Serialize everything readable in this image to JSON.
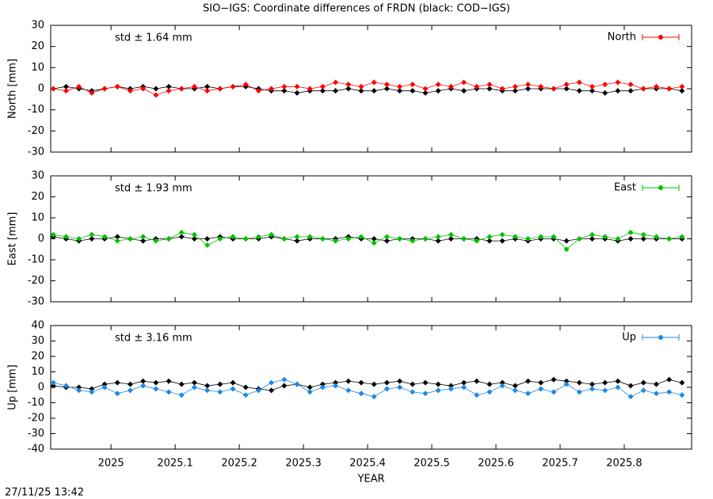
{
  "title": "SIO−IGS: Coordinate differences of FRDN (black: COD−IGS)",
  "timestamp": "27/11/25 13:42",
  "chart_data": [
    {
      "type": "line",
      "ylabel": "North [mm]",
      "annotation": "std ± 1.64 mm",
      "xlim": [
        2024.906,
        2025.905
      ],
      "xticks": [
        2025,
        2025.1,
        2025.2,
        2025.3,
        2025.4,
        2025.5,
        2025.6,
        2025.7,
        2025.8
      ],
      "xtick_labels": false,
      "ylim": [
        -30,
        30
      ],
      "yticks": [
        -30,
        -20,
        -10,
        0,
        10,
        20,
        30
      ],
      "legend": "top-right",
      "x": [
        2024.91,
        2024.93,
        2024.95,
        2024.97,
        2024.99,
        2025.01,
        2025.03,
        2025.05,
        2025.07,
        2025.09,
        2025.11,
        2025.13,
        2025.15,
        2025.17,
        2025.19,
        2025.21,
        2025.23,
        2025.25,
        2025.27,
        2025.29,
        2025.31,
        2025.33,
        2025.35,
        2025.37,
        2025.39,
        2025.41,
        2025.43,
        2025.45,
        2025.47,
        2025.49,
        2025.51,
        2025.53,
        2025.55,
        2025.57,
        2025.59,
        2025.61,
        2025.63,
        2025.65,
        2025.67,
        2025.69,
        2025.71,
        2025.73,
        2025.75,
        2025.77,
        2025.79,
        2025.81,
        2025.83,
        2025.85,
        2025.87,
        2025.89
      ],
      "series": [
        {
          "color": "#000000",
          "values": [
            0,
            1,
            0,
            -1,
            0,
            1,
            0,
            1,
            0,
            1,
            0,
            0,
            1,
            0,
            1,
            1,
            0,
            -1,
            -1,
            -2,
            -1,
            -1,
            -1,
            0,
            -1,
            -1,
            0,
            -1,
            -1,
            -2,
            -1,
            0,
            -1,
            0,
            0,
            -1,
            -1,
            0,
            0,
            0,
            0,
            -1,
            -1,
            -2,
            -1,
            -1,
            0,
            0,
            0,
            -1
          ]
        },
        {
          "name": "North",
          "color": "#ff0000",
          "values": [
            0,
            -1,
            1,
            -2,
            0,
            1,
            -1,
            0,
            -3,
            -1,
            0,
            1,
            -1,
            0,
            1,
            2,
            -1,
            0,
            1,
            1,
            0,
            1,
            3,
            2,
            1,
            3,
            2,
            1,
            2,
            0,
            2,
            1,
            3,
            1,
            2,
            0,
            1,
            2,
            1,
            0,
            2,
            3,
            1,
            2,
            3,
            2,
            0,
            1,
            0,
            1
          ]
        }
      ]
    },
    {
      "type": "line",
      "ylabel": "East [mm]",
      "annotation": "std ± 1.93 mm",
      "xlim": [
        2024.906,
        2025.905
      ],
      "xticks": [
        2025,
        2025.1,
        2025.2,
        2025.3,
        2025.4,
        2025.5,
        2025.6,
        2025.7,
        2025.8
      ],
      "xtick_labels": false,
      "ylim": [
        -30,
        30
      ],
      "yticks": [
        -30,
        -20,
        -10,
        0,
        10,
        20,
        30
      ],
      "legend": "top-right",
      "x": [
        2024.91,
        2024.93,
        2024.95,
        2024.97,
        2024.99,
        2025.01,
        2025.03,
        2025.05,
        2025.07,
        2025.09,
        2025.11,
        2025.13,
        2025.15,
        2025.17,
        2025.19,
        2025.21,
        2025.23,
        2025.25,
        2025.27,
        2025.29,
        2025.31,
        2025.33,
        2025.35,
        2025.37,
        2025.39,
        2025.41,
        2025.43,
        2025.45,
        2025.47,
        2025.49,
        2025.51,
        2025.53,
        2025.55,
        2025.57,
        2025.59,
        2025.61,
        2025.63,
        2025.65,
        2025.67,
        2025.69,
        2025.71,
        2025.73,
        2025.75,
        2025.77,
        2025.79,
        2025.81,
        2025.83,
        2025.85,
        2025.87,
        2025.89
      ],
      "series": [
        {
          "color": "#000000",
          "values": [
            1,
            0,
            -1,
            0,
            0,
            1,
            0,
            -1,
            0,
            0,
            1,
            0,
            0,
            1,
            0,
            0,
            0,
            1,
            0,
            -1,
            0,
            0,
            0,
            1,
            0,
            0,
            -1,
            0,
            0,
            0,
            -1,
            0,
            0,
            0,
            -1,
            -1,
            0,
            -1,
            0,
            0,
            -1,
            0,
            0,
            0,
            -1,
            0,
            0,
            0,
            0,
            0
          ]
        },
        {
          "name": "East",
          "color": "#00c000",
          "values": [
            2,
            1,
            0,
            2,
            1,
            -1,
            0,
            1,
            -1,
            0,
            3,
            2,
            -3,
            0,
            1,
            0,
            1,
            2,
            0,
            1,
            1,
            0,
            -1,
            0,
            1,
            -2,
            1,
            0,
            -1,
            0,
            1,
            2,
            0,
            -1,
            1,
            2,
            1,
            0,
            1,
            1,
            -5,
            0,
            2,
            1,
            0,
            3,
            2,
            1,
            0,
            1
          ]
        }
      ]
    },
    {
      "type": "line",
      "ylabel": "Up [mm]",
      "xlabel": "YEAR",
      "annotation": "std ± 3.16 mm",
      "xlim": [
        2024.906,
        2025.905
      ],
      "xticks": [
        2025,
        2025.1,
        2025.2,
        2025.3,
        2025.4,
        2025.5,
        2025.6,
        2025.7,
        2025.8
      ],
      "xtick_labels": true,
      "ylim": [
        -40,
        40
      ],
      "yticks": [
        -40,
        -30,
        -20,
        -10,
        0,
        10,
        20,
        30,
        40
      ],
      "legend": "top-right",
      "x": [
        2024.91,
        2024.93,
        2024.95,
        2024.97,
        2024.99,
        2025.01,
        2025.03,
        2025.05,
        2025.07,
        2025.09,
        2025.11,
        2025.13,
        2025.15,
        2025.17,
        2025.19,
        2025.21,
        2025.23,
        2025.25,
        2025.27,
        2025.29,
        2025.31,
        2025.33,
        2025.35,
        2025.37,
        2025.39,
        2025.41,
        2025.43,
        2025.45,
        2025.47,
        2025.49,
        2025.51,
        2025.53,
        2025.55,
        2025.57,
        2025.59,
        2025.61,
        2025.63,
        2025.65,
        2025.67,
        2025.69,
        2025.71,
        2025.73,
        2025.75,
        2025.77,
        2025.79,
        2025.81,
        2025.83,
        2025.85,
        2025.87,
        2025.89
      ],
      "series": [
        {
          "color": "#000000",
          "values": [
            1,
            0,
            0,
            -1,
            2,
            3,
            2,
            4,
            3,
            4,
            2,
            3,
            1,
            2,
            3,
            0,
            -1,
            -2,
            1,
            2,
            0,
            2,
            3,
            4,
            3,
            2,
            3,
            4,
            2,
            3,
            2,
            1,
            3,
            4,
            2,
            3,
            1,
            4,
            3,
            5,
            4,
            3,
            2,
            3,
            4,
            1,
            3,
            2,
            5,
            3
          ]
        },
        {
          "name": "Up",
          "color": "#1e88e5",
          "values": [
            3,
            1,
            -2,
            -3,
            0,
            -4,
            -2,
            1,
            -1,
            -3,
            -5,
            0,
            -2,
            -3,
            -1,
            -5,
            -2,
            3,
            5,
            2,
            -3,
            0,
            1,
            -2,
            -4,
            -6,
            -1,
            0,
            -3,
            -4,
            -2,
            -1,
            0,
            -5,
            -3,
            1,
            -2,
            -4,
            -1,
            -3,
            2,
            -3,
            -1,
            -2,
            0,
            -6,
            -2,
            -4,
            -3,
            -5
          ]
        }
      ]
    }
  ]
}
